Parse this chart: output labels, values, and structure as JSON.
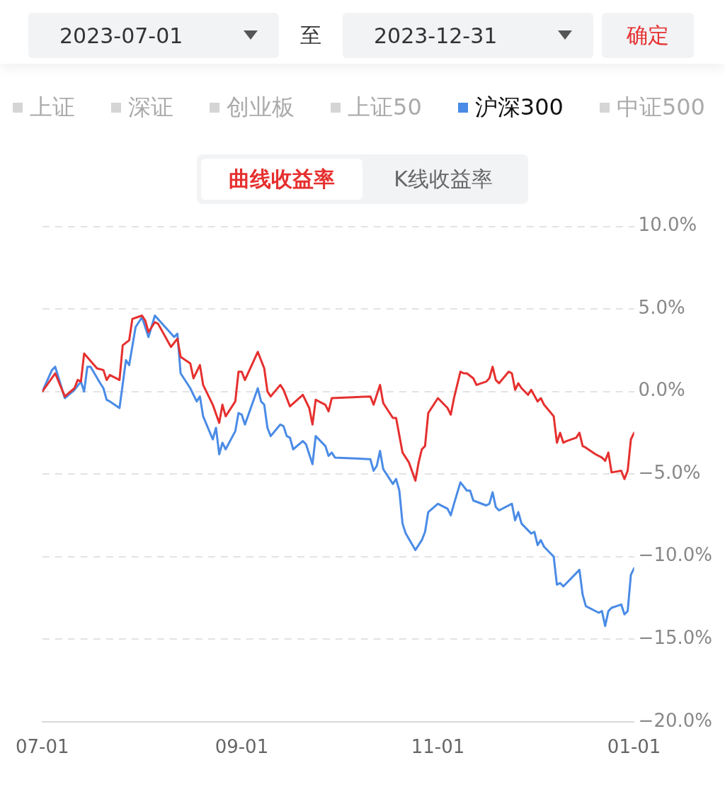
{
  "chart_data": {
    "type": "line",
    "annotations": [
      "2023-07-01",
      "至",
      "2023-12-31",
      "确定",
      "曲线收益率",
      "K线收益率",
      "上证",
      "深证",
      "创业板",
      "上证50",
      "中证500"
    ],
    "xlim": [
      "2023-07-01",
      "2024-01-01"
    ],
    "xticks": [
      {
        "value": "2023-07-01",
        "label": "07-01"
      },
      {
        "value": "2023-09-01",
        "label": "09-01"
      },
      {
        "value": "2023-11-01",
        "label": "11-01"
      },
      {
        "value": "2024-01-01",
        "label": "01-01"
      }
    ],
    "ylim": [
      -20,
      10
    ],
    "yticks": [
      {
        "value": -20,
        "label": "−20.0%"
      },
      {
        "value": -15,
        "label": "−15.0%"
      },
      {
        "value": -10,
        "label": "−10.0%"
      },
      {
        "value": -5,
        "label": "−5.0%"
      },
      {
        "value": 0,
        "label": "0.0%"
      },
      {
        "value": 5,
        "label": "5.0%"
      },
      {
        "value": 10,
        "label": "10.0%"
      }
    ],
    "grid": "y",
    "legend": "top",
    "marker": "none",
    "line_style": "solid",
    "series": [
      {
        "color": "#e5302f",
        "x": [
          "2023-07-01",
          "2023-07-05",
          "2023-07-08",
          "2023-07-11",
          "2023-07-12",
          "2023-07-13",
          "2023-07-14",
          "2023-07-18",
          "2023-07-20",
          "2023-07-21",
          "2023-07-22",
          "2023-07-25",
          "2023-07-26",
          "2023-07-28",
          "2023-07-29",
          "2023-08-01",
          "2023-08-02",
          "2023-08-03",
          "2023-08-05",
          "2023-08-06",
          "2023-08-10",
          "2023-08-12",
          "2023-08-13",
          "2023-08-16",
          "2023-08-17",
          "2023-08-19",
          "2023-08-20",
          "2023-08-23",
          "2023-08-25",
          "2023-08-26",
          "2023-08-27",
          "2023-08-30",
          "2023-08-31",
          "2023-09-01",
          "2023-09-02",
          "2023-09-06",
          "2023-09-08",
          "2023-09-09",
          "2023-09-10",
          "2023-09-13",
          "2023-09-14",
          "2023-09-16",
          "2023-09-20",
          "2023-09-22",
          "2023-09-23",
          "2023-09-24",
          "2023-09-27",
          "2023-09-28",
          "2023-09-29",
          "2023-10-11",
          "2023-10-12",
          "2023-10-14",
          "2023-10-15",
          "2023-10-18",
          "2023-10-19",
          "2023-10-21",
          "2023-10-23",
          "2023-10-25",
          "2023-10-26",
          "2023-10-27",
          "2023-10-28",
          "2023-10-29",
          "2023-11-01",
          "2023-11-03",
          "2023-11-04",
          "2023-11-05",
          "2023-11-06",
          "2023-11-08",
          "2023-11-09",
          "2023-11-10",
          "2023-11-12",
          "2023-11-13",
          "2023-11-16",
          "2023-11-17",
          "2023-11-18",
          "2023-11-19",
          "2023-11-20",
          "2023-11-23",
          "2023-11-24",
          "2023-11-25",
          "2023-11-26",
          "2023-11-27",
          "2023-11-29",
          "2023-11-30",
          "2023-12-02",
          "2023-12-03",
          "2023-12-04",
          "2023-12-07",
          "2023-12-08",
          "2023-12-09",
          "2023-12-10",
          "2023-12-11",
          "2023-12-14",
          "2023-12-15",
          "2023-12-16",
          "2023-12-17",
          "2023-12-20",
          "2023-12-22",
          "2023-12-23",
          "2023-12-24",
          "2023-12-25",
          "2023-12-28",
          "2023-12-29",
          "2023-12-30",
          "2023-12-31",
          "2024-01-01"
        ],
        "values": [
          0,
          1.1,
          -0.3,
          0.2,
          0.7,
          0.6,
          2.3,
          1.4,
          1.3,
          0.7,
          1.0,
          0.7,
          2.8,
          3.1,
          4.4,
          4.6,
          4.3,
          3.6,
          4.2,
          4.1,
          2.7,
          3.2,
          2.1,
          1.7,
          0.8,
          1.6,
          0.4,
          -0.8,
          -1.9,
          -0.8,
          -1.5,
          -0.6,
          1.2,
          1.2,
          0.7,
          2.4,
          1.4,
          0.0,
          -0.3,
          0.4,
          0.1,
          -0.9,
          -0.2,
          -1.0,
          -2.0,
          -0.5,
          -0.8,
          -1.2,
          -0.4,
          -0.3,
          -0.8,
          0.4,
          -0.7,
          -1.6,
          -1.6,
          -3.7,
          -4.3,
          -5.4,
          -4.3,
          -3.5,
          -3.3,
          -1.3,
          -0.4,
          -0.8,
          -1.0,
          -1.4,
          -0.4,
          1.2,
          1.1,
          1.1,
          0.8,
          0.4,
          0.6,
          0.8,
          1.5,
          0.7,
          0.5,
          1.2,
          1.1,
          0.1,
          0.5,
          0.2,
          -0.2,
          0.1,
          -0.6,
          -0.4,
          -0.8,
          -1.5,
          -3.1,
          -2.5,
          -3.1,
          -3.0,
          -2.8,
          -2.5,
          -3.3,
          -3.4,
          -3.8,
          -4.0,
          -4.2,
          -3.7,
          -4.9,
          -4.8,
          -5.3,
          -4.8,
          -2.9,
          -2.5
        ]
      },
      {
        "name": "沪深300",
        "color": "#4a8be6",
        "x": [
          "2023-07-01",
          "2023-07-04",
          "2023-07-05",
          "2023-07-08",
          "2023-07-11",
          "2023-07-13",
          "2023-07-14",
          "2023-07-15",
          "2023-07-16",
          "2023-07-19",
          "2023-07-20",
          "2023-07-21",
          "2023-07-22",
          "2023-07-25",
          "2023-07-27",
          "2023-07-28",
          "2023-07-30",
          "2023-08-01",
          "2023-08-03",
          "2023-08-05",
          "2023-08-11",
          "2023-08-12",
          "2023-08-13",
          "2023-08-16",
          "2023-08-18",
          "2023-08-19",
          "2023-08-20",
          "2023-08-23",
          "2023-08-24",
          "2023-08-25",
          "2023-08-26",
          "2023-08-27",
          "2023-08-30",
          "2023-08-31",
          "2023-09-01",
          "2023-09-02",
          "2023-09-06",
          "2023-09-07",
          "2023-09-08",
          "2023-09-09",
          "2023-09-10",
          "2023-09-13",
          "2023-09-14",
          "2023-09-15",
          "2023-09-16",
          "2023-09-17",
          "2023-09-20",
          "2023-09-21",
          "2023-09-23",
          "2023-09-24",
          "2023-09-27",
          "2023-09-28",
          "2023-09-29",
          "2023-09-30",
          "2023-10-11",
          "2023-10-12",
          "2023-10-13",
          "2023-10-14",
          "2023-10-15",
          "2023-10-18",
          "2023-10-19",
          "2023-10-20",
          "2023-10-21",
          "2023-10-22",
          "2023-10-25",
          "2023-10-27",
          "2023-10-28",
          "2023-10-29",
          "2023-11-01",
          "2023-11-03",
          "2023-11-04",
          "2023-11-05",
          "2023-11-06",
          "2023-11-08",
          "2023-11-10",
          "2023-11-11",
          "2023-11-12",
          "2023-11-16",
          "2023-11-17",
          "2023-11-18",
          "2023-11-19",
          "2023-11-20",
          "2023-11-24",
          "2023-11-25",
          "2023-11-26",
          "2023-11-27",
          "2023-11-30",
          "2023-12-01",
          "2023-12-02",
          "2023-12-03",
          "2023-12-04",
          "2023-12-07",
          "2023-12-08",
          "2023-12-09",
          "2023-12-10",
          "2023-12-15",
          "2023-12-16",
          "2023-12-17",
          "2023-12-21",
          "2023-12-22",
          "2023-12-23",
          "2023-12-24",
          "2023-12-25",
          "2023-12-28",
          "2023-12-29",
          "2023-12-30",
          "2023-12-31",
          "2024-01-01"
        ],
        "values": [
          0,
          1.3,
          1.5,
          -0.4,
          0.1,
          0.6,
          0.0,
          1.5,
          1.5,
          0.5,
          0.2,
          -0.5,
          -0.6,
          -1.0,
          1.9,
          1.6,
          3.9,
          4.5,
          3.3,
          4.6,
          3.3,
          3.5,
          1.1,
          0.2,
          -0.6,
          -0.3,
          -1.5,
          -2.9,
          -2.2,
          -3.8,
          -3.1,
          -3.5,
          -2.4,
          -1.3,
          -1.4,
          -2.0,
          0.2,
          -0.6,
          -0.8,
          -2.2,
          -2.7,
          -2.0,
          -2.1,
          -2.7,
          -2.8,
          -3.5,
          -3.0,
          -3.2,
          -4.4,
          -2.7,
          -3.3,
          -3.9,
          -3.7,
          -4.0,
          -4.1,
          -4.8,
          -4.5,
          -3.6,
          -4.7,
          -5.6,
          -5.3,
          -6.0,
          -8.0,
          -8.6,
          -9.6,
          -9.0,
          -8.5,
          -7.3,
          -6.8,
          -7.0,
          -7.1,
          -7.5,
          -6.8,
          -5.5,
          -6.0,
          -6.0,
          -6.6,
          -6.9,
          -6.8,
          -6.1,
          -7.0,
          -7.2,
          -6.8,
          -7.8,
          -7.3,
          -8.0,
          -8.6,
          -8.5,
          -9.3,
          -9.0,
          -9.4,
          -10.0,
          -11.7,
          -11.6,
          -11.8,
          -10.8,
          -12.3,
          -13.0,
          -13.4,
          -13.3,
          -14.2,
          -13.3,
          -13.1,
          -12.9,
          -13.5,
          -13.3,
          -11.1,
          -10.7
        ]
      }
    ]
  }
}
